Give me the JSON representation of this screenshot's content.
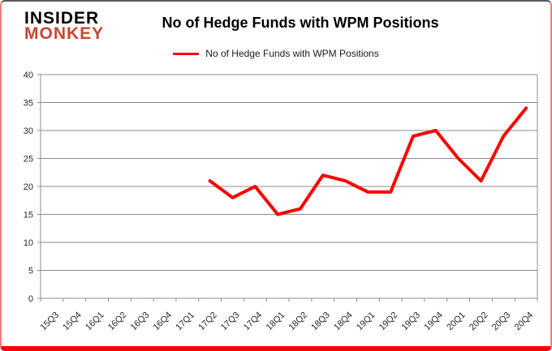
{
  "logo": {
    "line1": "INSIDER",
    "line2": "MONKEY",
    "accent_color": "#c74634"
  },
  "header": {
    "title": "No of Hedge Funds with WPM Positions"
  },
  "legend": {
    "label": "No of Hedge Funds with WPM Positions",
    "swatch_color": "#FF0000"
  },
  "frame": {
    "side_color": "#f47c7c",
    "top_color": "#595959",
    "bottom_color": "#FF0000"
  },
  "chart_data": {
    "type": "line",
    "title": "No of Hedge Funds with WPM Positions",
    "categories": [
      "15Q3",
      "15Q4",
      "16Q1",
      "16Q2",
      "16Q3",
      "16Q4",
      "17Q1",
      "17Q2",
      "17Q3",
      "17Q4",
      "18Q1",
      "18Q2",
      "18Q3",
      "18Q4",
      "19Q1",
      "19Q2",
      "19Q3",
      "19Q4",
      "20Q1",
      "20Q2",
      "20Q3",
      "20Q4"
    ],
    "series": [
      {
        "name": "No of Hedge Funds with WPM Positions",
        "color": "#FF0000",
        "values": [
          null,
          null,
          null,
          null,
          null,
          null,
          null,
          21,
          18,
          20,
          15,
          16,
          22,
          21,
          19,
          19,
          29,
          30,
          25,
          21,
          29,
          34
        ]
      }
    ],
    "xlabel": "",
    "ylabel": "",
    "ylim": [
      0,
      40
    ],
    "yticks": [
      0,
      5,
      10,
      15,
      20,
      25,
      30,
      35,
      40
    ],
    "grid": true,
    "legend_position": "top-center",
    "grid_color": "#8c8c8c",
    "axis_color": "#8c8c8c",
    "tick_label_color": "#262626"
  }
}
